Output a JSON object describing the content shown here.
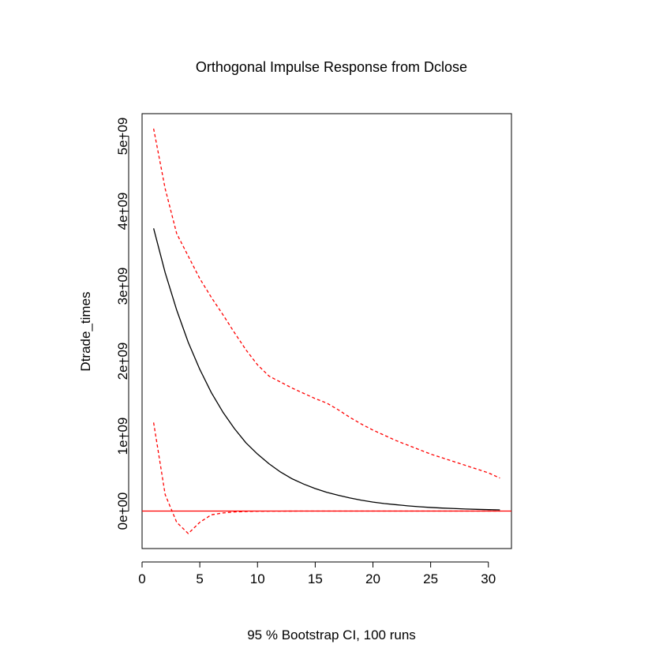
{
  "chart_data": {
    "type": "line",
    "title": "Orthogonal Impulse Response from Dclose",
    "xlabel": "95 % Bootstrap CI,  100 runs",
    "ylabel": "Dtrade_times",
    "xlim": [
      0,
      32
    ],
    "ylim": [
      -500000000,
      5300000000
    ],
    "x_ticks": [
      0,
      5,
      10,
      15,
      20,
      25,
      30
    ],
    "x_tick_labels": [
      "0",
      "5",
      "10",
      "15",
      "20",
      "25",
      "30"
    ],
    "y_ticks": [
      0,
      1000000000,
      2000000000,
      3000000000,
      4000000000,
      5000000000
    ],
    "y_tick_labels": [
      "0e+00",
      "1e+09",
      "2e+09",
      "3e+09",
      "4e+09",
      "5e+09"
    ],
    "x": [
      1,
      2,
      3,
      4,
      5,
      6,
      7,
      8,
      9,
      10,
      11,
      12,
      13,
      14,
      15,
      16,
      17,
      18,
      19,
      20,
      21,
      22,
      23,
      24,
      25,
      26,
      27,
      28,
      29,
      30,
      31
    ],
    "series": [
      {
        "role": "response",
        "color": "#000000",
        "dash": "solid",
        "values": [
          3770000000,
          3180000000,
          2680000000,
          2250000000,
          1890000000,
          1580000000,
          1320000000,
          1100000000,
          910000000,
          760000000,
          630000000,
          520000000,
          430000000,
          360000000,
          300000000,
          250000000,
          210000000,
          175000000,
          145000000,
          120000000,
          100000000,
          85000000,
          70000000,
          58000000,
          48000000,
          40000000,
          34000000,
          28000000,
          23000000,
          19000000,
          16000000
        ]
      },
      {
        "role": "upper",
        "color": "#ff0000",
        "dash": "dashed",
        "values": [
          5100000000,
          4300000000,
          3700000000,
          3400000000,
          3100000000,
          2850000000,
          2620000000,
          2380000000,
          2150000000,
          1950000000,
          1800000000,
          1720000000,
          1640000000,
          1570000000,
          1500000000,
          1440000000,
          1350000000,
          1250000000,
          1160000000,
          1080000000,
          1010000000,
          940000000,
          880000000,
          820000000,
          760000000,
          710000000,
          660000000,
          610000000,
          560000000,
          510000000,
          440000000
        ]
      },
      {
        "role": "lower",
        "color": "#ff0000",
        "dash": "dashed",
        "values": [
          1180000000,
          220000000,
          -150000000,
          -300000000,
          -150000000,
          -50000000,
          -25000000,
          -12000000,
          -6000000,
          -3000000,
          -1500000,
          -1000000,
          -500000,
          0,
          0,
          0,
          0,
          0,
          0,
          0,
          0,
          0,
          0,
          0,
          0,
          0,
          0,
          0,
          0,
          0,
          0
        ]
      }
    ],
    "reference_line": {
      "y": 0,
      "color": "#ff0000"
    },
    "grid": false,
    "legend": "none"
  }
}
